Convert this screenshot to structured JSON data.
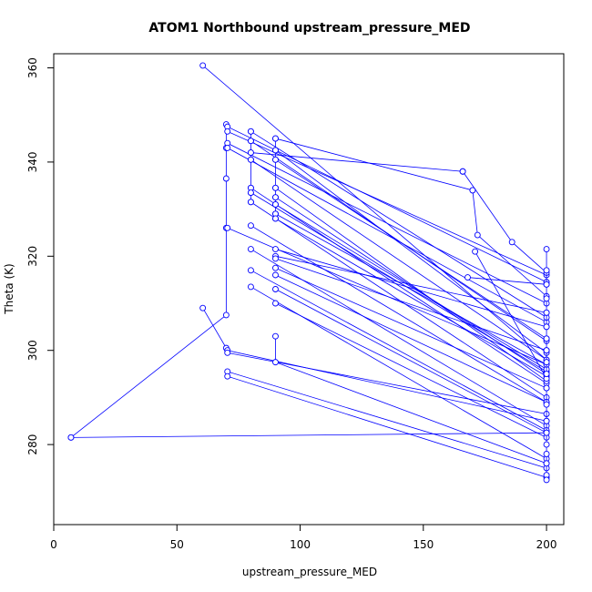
{
  "chart_data": {
    "type": "line",
    "title": "ATOM1 Northbound upstream_pressure_MED",
    "xlabel": "upstream_pressure_MED",
    "ylabel": "Theta (K)",
    "xlim": [
      0,
      207
    ],
    "ylim": [
      263,
      363
    ],
    "xticks": [
      0,
      50,
      100,
      150,
      200
    ],
    "yticks": [
      280,
      300,
      320,
      340,
      360
    ],
    "grid": false,
    "legend": "none",
    "series_color": "#0000ff",
    "series": [
      {
        "x": [
          60.5,
          200
        ],
        "y": [
          360.5,
          298
        ]
      },
      {
        "x": [
          7,
          70,
          70,
          70,
          70,
          70
        ],
        "y": [
          281.5,
          307.5,
          326,
          336.5,
          343,
          348
        ]
      },
      {
        "x": [
          7,
          200
        ],
        "y": [
          281.5,
          282.5
        ]
      },
      {
        "x": [
          60.5,
          70
        ],
        "y": [
          309,
          300.5
        ]
      },
      {
        "x": [
          70.5,
          200
        ],
        "y": [
          347.5,
          314.5
        ]
      },
      {
        "x": [
          70.5,
          200
        ],
        "y": [
          346.5,
          316
        ]
      },
      {
        "x": [
          70.5,
          200
        ],
        "y": [
          344,
          310
        ]
      },
      {
        "x": [
          70.5,
          200
        ],
        "y": [
          343,
          306
        ]
      },
      {
        "x": [
          70.5,
          200
        ],
        "y": [
          326,
          297
        ]
      },
      {
        "x": [
          70.5,
          200
        ],
        "y": [
          300,
          285
        ]
      },
      {
        "x": [
          70.5,
          200
        ],
        "y": [
          299.5,
          286.5
        ]
      },
      {
        "x": [
          70.5,
          200
        ],
        "y": [
          295.5,
          275
        ]
      },
      {
        "x": [
          70.5,
          200
        ],
        "y": [
          294.5,
          273
        ]
      },
      {
        "x": [
          80,
          80,
          80,
          80,
          80,
          80,
          80
        ],
        "y": [
          346.5,
          344.5,
          342,
          340.5,
          334.5,
          333.5,
          331.5
        ]
      },
      {
        "x": [
          80,
          200
        ],
        "y": [
          346.5,
          307
        ]
      },
      {
        "x": [
          80,
          200
        ],
        "y": [
          344.5,
          302
        ]
      },
      {
        "x": [
          80,
          166
        ],
        "y": [
          342,
          338
        ]
      },
      {
        "x": [
          80,
          200
        ],
        "y": [
          340.5,
          298
        ]
      },
      {
        "x": [
          80,
          200
        ],
        "y": [
          334.5,
          293
        ]
      },
      {
        "x": [
          80,
          200
        ],
        "y": [
          333.5,
          295.5
        ]
      },
      {
        "x": [
          80,
          200
        ],
        "y": [
          331.5,
          290
        ]
      },
      {
        "x": [
          80,
          200
        ],
        "y": [
          326.5,
          289
        ]
      },
      {
        "x": [
          80,
          200
        ],
        "y": [
          321.5,
          284
        ]
      },
      {
        "x": [
          80,
          200
        ],
        "y": [
          317,
          283
        ]
      },
      {
        "x": [
          80,
          200
        ],
        "y": [
          313.5,
          277
        ]
      },
      {
        "x": [
          90,
          90,
          90,
          90,
          90,
          90,
          90,
          90
        ],
        "y": [
          345,
          342.5,
          340.5,
          334.5,
          332.5,
          331,
          329,
          328
        ]
      },
      {
        "x": [
          90,
          170
        ],
        "y": [
          345,
          334
        ]
      },
      {
        "x": [
          90,
          200
        ],
        "y": [
          342.5,
          299.5
        ]
      },
      {
        "x": [
          90,
          200
        ],
        "y": [
          340.5,
          302.5
        ]
      },
      {
        "x": [
          90,
          200
        ],
        "y": [
          334.5,
          293.5
        ]
      },
      {
        "x": [
          90,
          200
        ],
        "y": [
          332.5,
          295
        ]
      },
      {
        "x": [
          90,
          200
        ],
        "y": [
          331,
          296
        ]
      },
      {
        "x": [
          90,
          200
        ],
        "y": [
          329,
          297
        ]
      },
      {
        "x": [
          90,
          200
        ],
        "y": [
          328,
          294.5
        ]
      },
      {
        "x": [
          90,
          200
        ],
        "y": [
          321.5,
          305
        ]
      },
      {
        "x": [
          90,
          200
        ],
        "y": [
          320,
          308
        ]
      },
      {
        "x": [
          90,
          200
        ],
        "y": [
          319.5,
          300
        ]
      },
      {
        "x": [
          90,
          200
        ],
        "y": [
          317.5,
          292
        ]
      },
      {
        "x": [
          90,
          200
        ],
        "y": [
          316,
          289
        ]
      },
      {
        "x": [
          90,
          200
        ],
        "y": [
          313,
          282.5
        ]
      },
      {
        "x": [
          90,
          200
        ],
        "y": [
          310,
          281.5
        ]
      },
      {
        "x": [
          90,
          90,
          200
        ],
        "y": [
          303,
          297.5,
          276
        ]
      },
      {
        "x": [
          166,
          186,
          200
        ],
        "y": [
          338,
          323,
          316.5
        ]
      },
      {
        "x": [
          170,
          172,
          200
        ],
        "y": [
          334,
          324.5,
          311.5
        ]
      },
      {
        "x": [
          168,
          200
        ],
        "y": [
          315.5,
          314
        ]
      },
      {
        "x": [
          171,
          200
        ],
        "y": [
          321,
          294
        ]
      },
      {
        "x": [
          200,
          200,
          200,
          200,
          200,
          200,
          200,
          200,
          200,
          200
        ],
        "y": [
          321.5,
          317,
          314,
          311,
          308,
          305,
          302.5,
          300,
          297.5,
          295
        ]
      },
      {
        "x": [
          200,
          200,
          200,
          200,
          200,
          200,
          200,
          200,
          200
        ],
        "y": [
          292,
          288.5,
          285,
          282.5,
          280,
          278,
          276,
          273.5,
          272.5
        ]
      }
    ]
  }
}
